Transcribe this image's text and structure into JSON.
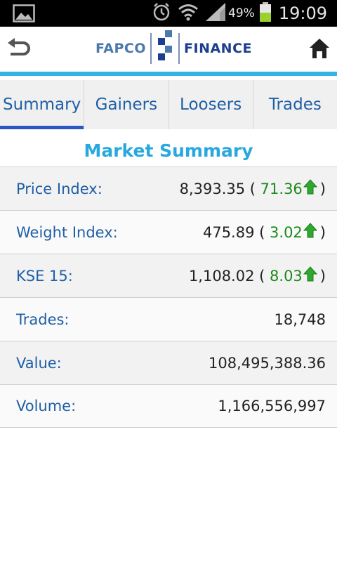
{
  "status_bar": {
    "battery_percent": "49%",
    "time": "19:09",
    "colors": {
      "background": "#000000",
      "battery_fill": "#9bd12f"
    }
  },
  "header": {
    "logo_left": "FAPCO",
    "logo_right": "FINANCE",
    "colors": {
      "accent_rule": "#33b5e5"
    }
  },
  "tabs": [
    {
      "label": "Summary",
      "active": true
    },
    {
      "label": "Gainers",
      "active": false
    },
    {
      "label": "Loosers",
      "active": false
    },
    {
      "label": "Trades",
      "active": false
    }
  ],
  "section": {
    "title": "Market Summary"
  },
  "rows": [
    {
      "label": "Price Index:",
      "value": "8,393.35",
      "open": "(",
      "change": "71.36",
      "close": ")",
      "direction": "up"
    },
    {
      "label": "Weight Index:",
      "value": "475.89",
      "open": "(",
      "change": "3.02",
      "close": ")",
      "direction": "up"
    },
    {
      "label": "KSE 15:",
      "value": "1,108.02",
      "open": "(",
      "change": "8.03",
      "close": ")",
      "direction": "up"
    },
    {
      "label": "Trades:",
      "value": "18,748"
    },
    {
      "label": "Value:",
      "value": "108,495,388.36"
    },
    {
      "label": "Volume:",
      "value": "1,166,556,997"
    }
  ],
  "colors": {
    "label_text": "#1f5fa6",
    "title_text": "#28a8de",
    "positive_change": "#1c8a1c",
    "active_tab_indicator": "#2b59c3"
  },
  "icons": [
    "image-icon",
    "alarm-icon",
    "wifi-icon",
    "signal-icon",
    "battery-icon",
    "back-icon",
    "home-icon",
    "arrow-up-icon"
  ]
}
